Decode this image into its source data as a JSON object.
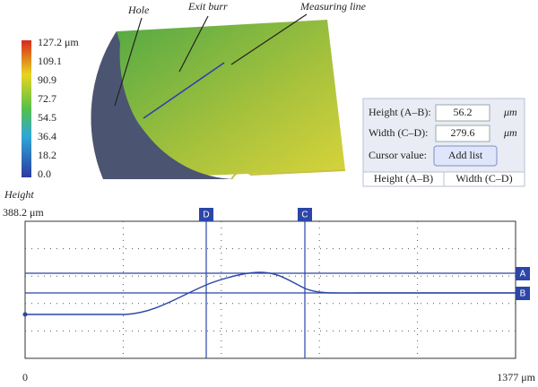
{
  "image": {
    "annotations": [
      "Hole",
      "Exit burr",
      "Measuring line"
    ],
    "colorbar": [
      "127.2 μm",
      "109.1",
      "90.9",
      "72.7",
      "54.5",
      "36.4",
      "18.2",
      "0.0"
    ]
  },
  "panel": {
    "rows": [
      {
        "label": "Height (A–B):",
        "value": "56.2",
        "unit": "μm"
      },
      {
        "label": "Width (C–D):",
        "value": "279.6",
        "unit": "μm"
      }
    ],
    "cursor_label": "Cursor value:",
    "button": "Add list",
    "table_headers": [
      "Height (A–B)",
      "Width (C–D)"
    ]
  },
  "profile": {
    "y_label": "Height",
    "y_max": "388.2 μm",
    "x_min": "0",
    "x_max": "1377 μm",
    "markers": [
      "D",
      "C",
      "A",
      "B"
    ]
  }
}
